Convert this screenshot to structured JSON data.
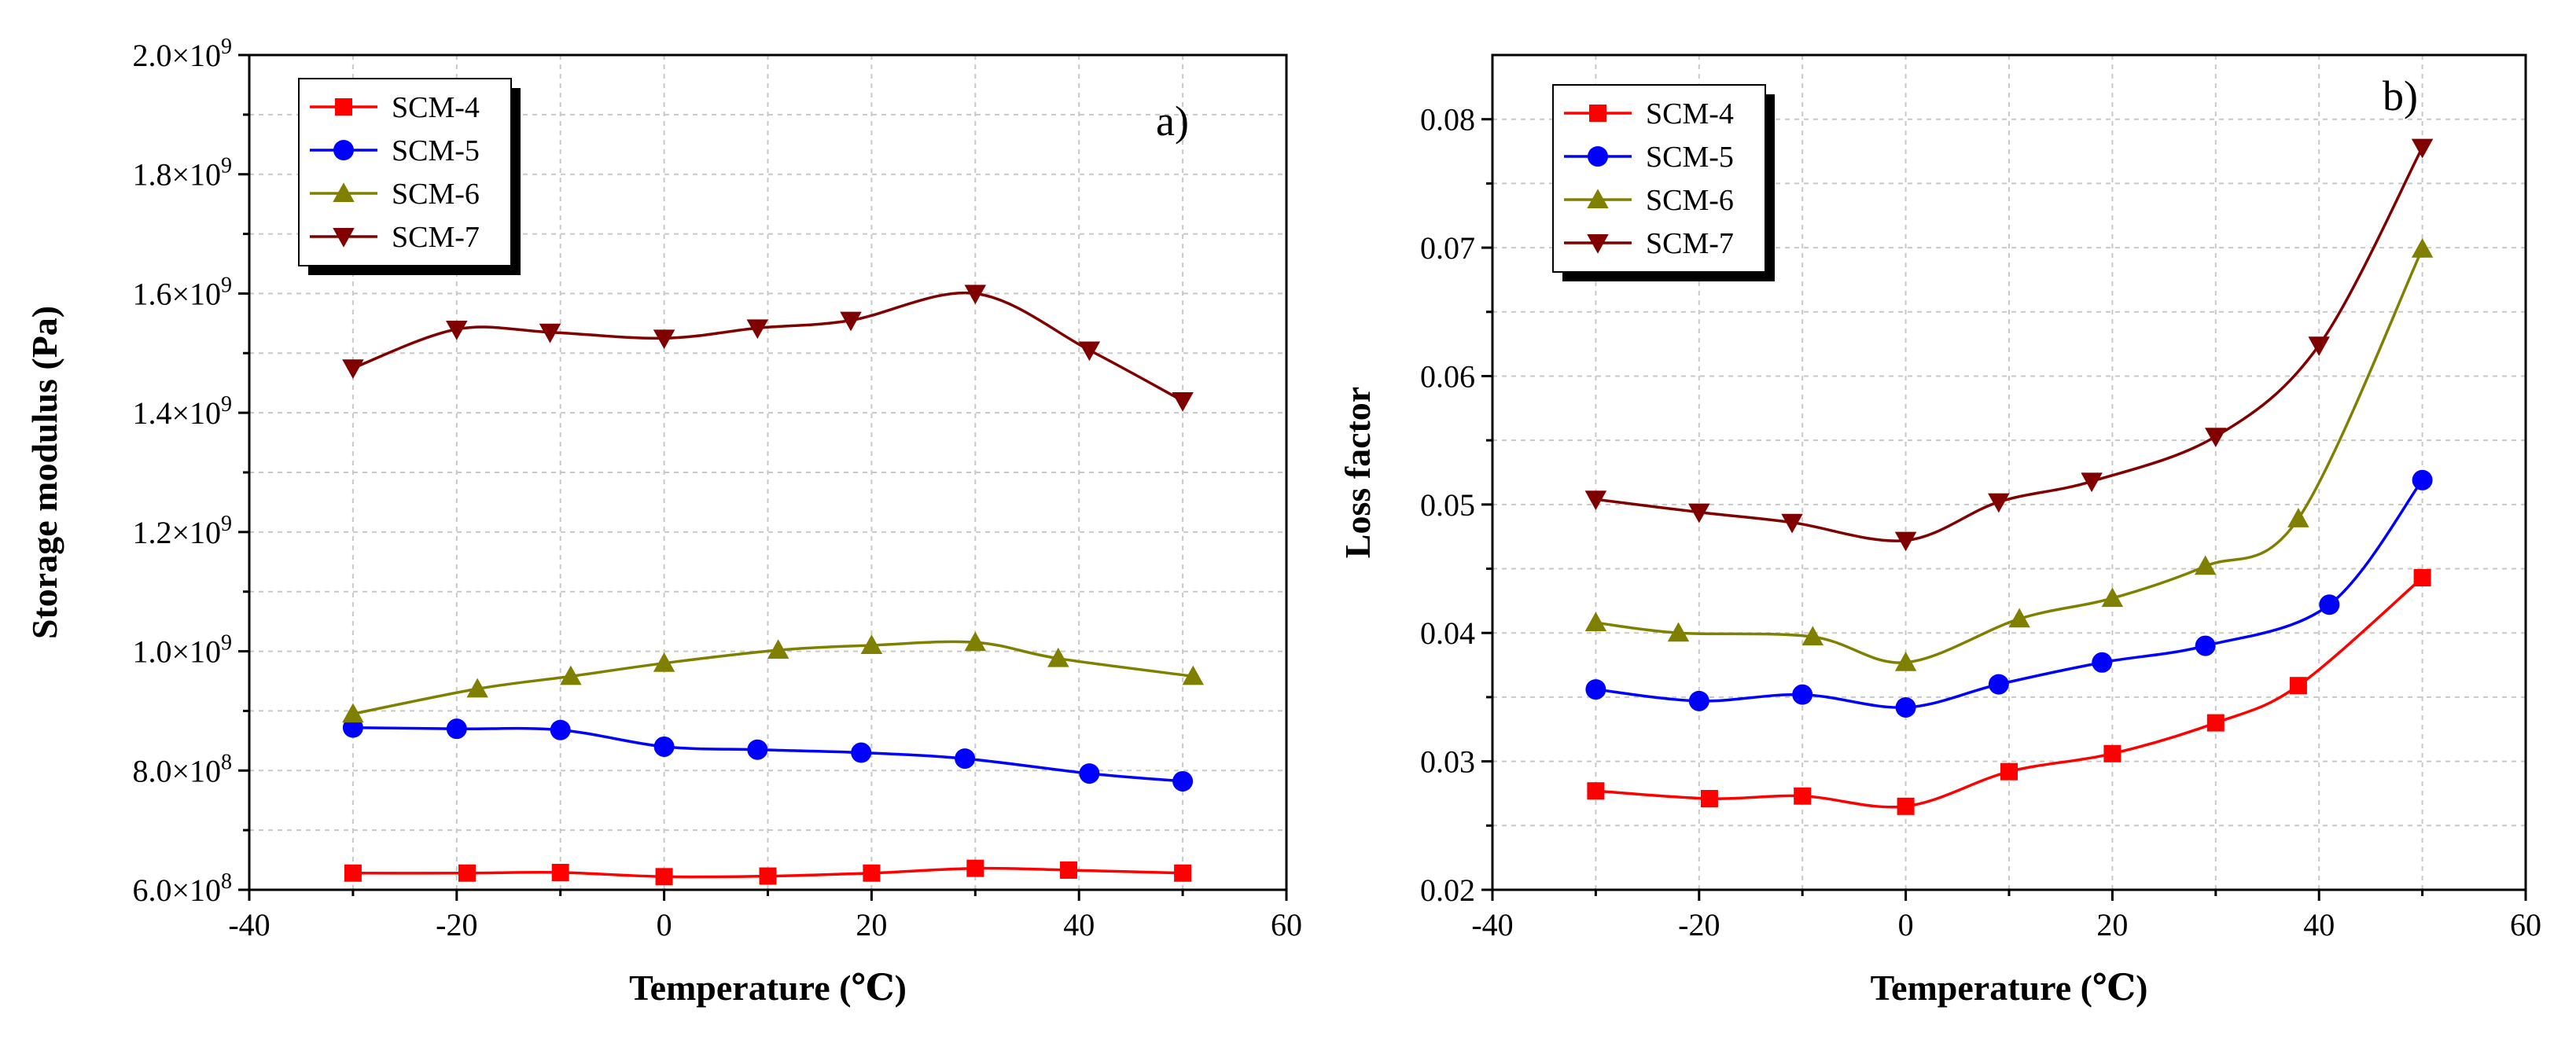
{
  "chart_data": [
    {
      "type": "line",
      "panel_label": "a)",
      "xlabel": "Temperature (℃)",
      "ylabel": "Storage modulus (Pa)",
      "xlim": [
        -40,
        60
      ],
      "ylim": [
        600000000,
        2000000000
      ],
      "x_ticks": [
        -40,
        -20,
        0,
        20,
        40,
        60
      ],
      "x_tick_labels": [
        "-40",
        "-20",
        "0",
        "20",
        "40",
        "60"
      ],
      "y_ticks": [
        600000000,
        800000000,
        1000000000,
        1200000000,
        1400000000,
        1600000000,
        1800000000,
        2000000000
      ],
      "y_tick_labels": [
        {
          "m": "6.0×10",
          "e": "8"
        },
        {
          "m": "8.0×10",
          "e": "8"
        },
        {
          "m": "1.0×10",
          "e": "9"
        },
        {
          "m": "1.2×10",
          "e": "9"
        },
        {
          "m": "1.4×10",
          "e": "9"
        },
        {
          "m": "1.6×10",
          "e": "9"
        },
        {
          "m": "1.8×10",
          "e": "9"
        },
        {
          "m": "2.0×10",
          "e": "9"
        }
      ],
      "grid": true,
      "legend_position": "top-left",
      "series": [
        {
          "name": "SCM-4",
          "color": "#ff0000",
          "marker": "square",
          "x": [
            -30,
            -19,
            -10,
            0,
            10,
            20,
            30,
            39,
            50
          ],
          "values": [
            628000000,
            628000000,
            629000000,
            622000000,
            623000000,
            628000000,
            636000000,
            633000000,
            628000000
          ]
        },
        {
          "name": "SCM-5",
          "color": "#0000ff",
          "marker": "circle",
          "x": [
            -30,
            -20,
            -10,
            0,
            9,
            19,
            29,
            41,
            50
          ],
          "values": [
            872000000,
            870000000,
            868000000,
            840000000,
            835000000,
            830000000,
            820000000,
            795000000,
            782000000
          ]
        },
        {
          "name": "SCM-6",
          "color": "#808000",
          "marker": "triangle-up",
          "x": [
            -30,
            -18,
            -9,
            0,
            11,
            20,
            30,
            38,
            51
          ],
          "values": [
            895000000,
            937000000,
            958000000,
            980000000,
            1002000000,
            1010000000,
            1015000000,
            988000000,
            958000000
          ]
        },
        {
          "name": "SCM-7",
          "color": "#800000",
          "marker": "triangle-down",
          "x": [
            -30,
            -20,
            -11,
            0,
            9,
            18,
            30,
            41,
            50
          ],
          "values": [
            1475000000,
            1540000000,
            1535000000,
            1525000000,
            1542000000,
            1555000000,
            1600000000,
            1505000000,
            1420000000
          ]
        }
      ]
    },
    {
      "type": "line",
      "panel_label": "b)",
      "xlabel": "Temperature (℃)",
      "ylabel": "Loss factor",
      "xlim": [
        -40,
        60
      ],
      "ylim": [
        0.02,
        0.085
      ],
      "x_ticks": [
        -40,
        -20,
        0,
        20,
        40,
        60
      ],
      "x_tick_labels": [
        "-40",
        "-20",
        "0",
        "20",
        "40",
        "60"
      ],
      "y_ticks": [
        0.02,
        0.03,
        0.04,
        0.05,
        0.06,
        0.07,
        0.08
      ],
      "y_tick_labels": [
        "0.02",
        "0.03",
        "0.04",
        "0.05",
        "0.06",
        "0.07",
        "0.08"
      ],
      "grid": true,
      "legend_position": "top-left",
      "series": [
        {
          "name": "SCM-4",
          "color": "#ff0000",
          "marker": "square",
          "x": [
            -30,
            -19,
            -10,
            0,
            10,
            20,
            30,
            38,
            50
          ],
          "values": [
            0.0277,
            0.0271,
            0.0273,
            0.0265,
            0.0292,
            0.0306,
            0.033,
            0.0359,
            0.0443
          ]
        },
        {
          "name": "SCM-5",
          "color": "#0000ff",
          "marker": "circle",
          "x": [
            -30,
            -20,
            -10,
            0,
            9,
            19,
            29,
            41,
            50
          ],
          "values": [
            0.0356,
            0.0347,
            0.0352,
            0.0342,
            0.036,
            0.0377,
            0.039,
            0.0422,
            0.0519
          ]
        },
        {
          "name": "SCM-6",
          "color": "#808000",
          "marker": "triangle-up",
          "x": [
            -30,
            -22,
            -9,
            0,
            11,
            20,
            29,
            38,
            50
          ],
          "values": [
            0.0408,
            0.04,
            0.0397,
            0.0377,
            0.0411,
            0.0427,
            0.0452,
            0.0489,
            0.0699
          ]
        },
        {
          "name": "SCM-7",
          "color": "#800000",
          "marker": "triangle-down",
          "x": [
            -30,
            -20,
            -11,
            0,
            9,
            18,
            30,
            40,
            50
          ],
          "values": [
            0.0504,
            0.0494,
            0.0486,
            0.0472,
            0.0502,
            0.0518,
            0.0553,
            0.0624,
            0.0778
          ]
        }
      ]
    }
  ]
}
